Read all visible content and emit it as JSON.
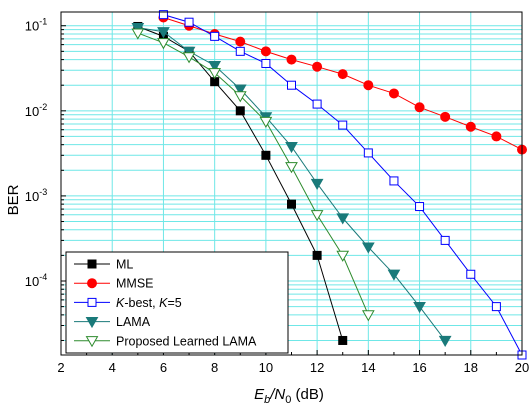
{
  "chart_data": {
    "type": "line",
    "xlabel": {
      "main": "E",
      "sub1": "b",
      "slash": "/N",
      "sub2": "0",
      "unit": " (dB)"
    },
    "ylabel": "BER",
    "xlim": [
      2,
      20
    ],
    "ylim": [
      1.35e-05,
      0.145
    ],
    "yscale": "log",
    "grid": true,
    "legend_position": "bottom-left",
    "x_ticks": [
      2,
      4,
      6,
      8,
      10,
      12,
      14,
      16,
      18,
      20
    ],
    "y_ticks": [
      {
        "value": 0.1,
        "base": "10",
        "exp": "-1"
      },
      {
        "value": 0.01,
        "base": "10",
        "exp": "-2"
      },
      {
        "value": 0.001,
        "base": "10",
        "exp": "-3"
      },
      {
        "value": 0.0001,
        "base": "10",
        "exp": "-4"
      }
    ],
    "series": [
      {
        "name": "ML",
        "color": "#000000",
        "marker": "square-filled",
        "x": [
          5,
          6,
          7,
          8,
          9,
          10,
          11,
          12,
          13
        ],
        "y": [
          0.098,
          0.075,
          0.05,
          0.022,
          0.01,
          0.003,
          0.0008,
          0.0002,
          2e-05
        ]
      },
      {
        "name": "MMSE",
        "color": "#ff0000",
        "marker": "circle-filled",
        "x": [
          6,
          7,
          8,
          9,
          10,
          11,
          12,
          13,
          14,
          15,
          16,
          17,
          18,
          19,
          20
        ],
        "y": [
          0.125,
          0.1,
          0.08,
          0.065,
          0.05,
          0.04,
          0.033,
          0.027,
          0.02,
          0.016,
          0.011,
          0.0085,
          0.0065,
          0.005,
          0.0035
        ]
      },
      {
        "name": "K-best, K=5",
        "label_parts": [
          {
            "t": "K",
            "italic": true
          },
          {
            "t": "-best, ",
            "italic": false
          },
          {
            "t": "K",
            "italic": true
          },
          {
            "t": "=5",
            "italic": false
          }
        ],
        "color": "#0000ff",
        "marker": "square-open",
        "x": [
          6,
          7,
          8,
          9,
          10,
          11,
          12,
          13,
          14,
          15,
          16,
          17,
          18,
          19,
          20
        ],
        "y": [
          0.135,
          0.11,
          0.075,
          0.05,
          0.036,
          0.02,
          0.012,
          0.0068,
          0.0032,
          0.0015,
          0.00075,
          0.0003,
          0.00012,
          5e-05,
          1.35e-05
        ]
      },
      {
        "name": "LAMA",
        "color": "#1a7a7a",
        "marker": "triangle-down-filled",
        "x": [
          5,
          6,
          7,
          8,
          9,
          10,
          11,
          12,
          13,
          14,
          15,
          16,
          17
        ],
        "y": [
          0.095,
          0.085,
          0.05,
          0.034,
          0.018,
          0.0085,
          0.0038,
          0.0014,
          0.00055,
          0.00025,
          0.00012,
          5e-05,
          2e-05
        ]
      },
      {
        "name": "Proposed Learned LAMA",
        "color": "#2e8b2e",
        "marker": "triangle-down-open",
        "x": [
          5,
          6,
          7,
          8,
          9,
          10,
          11,
          12,
          13,
          14
        ],
        "y": [
          0.082,
          0.063,
          0.043,
          0.028,
          0.015,
          0.0075,
          0.0022,
          0.0006,
          0.0002,
          4e-05
        ]
      }
    ]
  }
}
